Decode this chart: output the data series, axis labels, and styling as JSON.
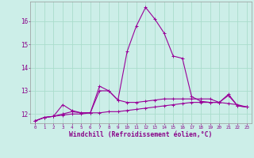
{
  "xlabel": "Windchill (Refroidissement éolien,°C)",
  "background_color": "#cceee8",
  "grid_color": "#aaddcc",
  "line_color": "#990099",
  "x_hours": [
    0,
    1,
    2,
    3,
    4,
    5,
    6,
    7,
    8,
    9,
    10,
    11,
    12,
    13,
    14,
    15,
    16,
    17,
    18,
    19,
    20,
    21,
    22,
    23
  ],
  "series1": [
    11.7,
    11.85,
    11.9,
    11.95,
    12.0,
    12.0,
    12.05,
    12.05,
    12.1,
    12.1,
    12.15,
    12.2,
    12.25,
    12.3,
    12.35,
    12.4,
    12.45,
    12.5,
    12.5,
    12.5,
    12.5,
    12.45,
    12.4,
    12.3
  ],
  "series2": [
    11.7,
    11.85,
    11.9,
    12.0,
    12.1,
    12.05,
    12.05,
    13.0,
    13.0,
    12.6,
    12.5,
    12.5,
    12.55,
    12.6,
    12.65,
    12.65,
    12.65,
    12.65,
    12.65,
    12.65,
    12.5,
    12.8,
    12.35,
    12.3
  ],
  "series3": [
    11.7,
    11.85,
    11.9,
    12.4,
    12.15,
    12.05,
    12.05,
    13.2,
    13.0,
    12.6,
    14.7,
    15.8,
    16.6,
    16.1,
    15.5,
    14.5,
    14.4,
    12.75,
    12.55,
    12.5,
    12.5,
    12.85,
    12.35,
    12.3
  ],
  "ylim_min": 11.6,
  "ylim_max": 16.85,
  "yticks": [
    12,
    13,
    14,
    15,
    16
  ],
  "xtick_labels": [
    "0",
    "1",
    "2",
    "3",
    "4",
    "5",
    "6",
    "7",
    "8",
    "9",
    "10",
    "11",
    "12",
    "13",
    "14",
    "15",
    "16",
    "17",
    "18",
    "19",
    "20",
    "21",
    "22",
    "23"
  ]
}
